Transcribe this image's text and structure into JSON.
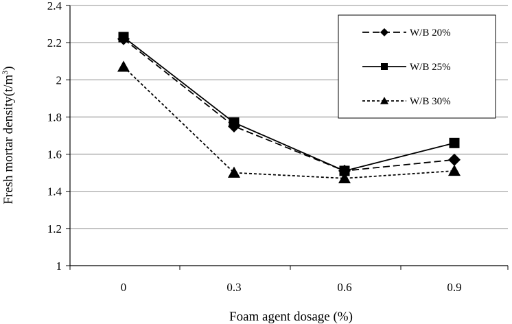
{
  "chart_data": {
    "type": "line",
    "title": "",
    "xlabel": "Foam agent dosage (%)",
    "ylabel": {
      "main": "Fresh mortar density(t/m",
      "sup": "3",
      "close": ")"
    },
    "categories": [
      "0",
      "0.3",
      "0.6",
      "0.9"
    ],
    "ylim": [
      1,
      2.4
    ],
    "yticks": [
      "1",
      "1.2",
      "1.4",
      "1.6",
      "1.8",
      "2",
      "2.2",
      "2.4"
    ],
    "grid": "horizontal",
    "legend_position": "top-right",
    "series": [
      {
        "name": "W/B 20%",
        "values": [
          2.22,
          1.75,
          1.51,
          1.57
        ],
        "marker": "diamond",
        "dash": "dashed"
      },
      {
        "name": "W/B 25%",
        "values": [
          2.23,
          1.77,
          1.51,
          1.66
        ],
        "marker": "square",
        "dash": "solid"
      },
      {
        "name": "W/B 30%",
        "values": [
          2.07,
          1.5,
          1.47,
          1.51
        ],
        "marker": "triangle",
        "dash": "dotted"
      }
    ]
  },
  "colors": {
    "line": "#000000",
    "grid": "#a6a6a6"
  }
}
